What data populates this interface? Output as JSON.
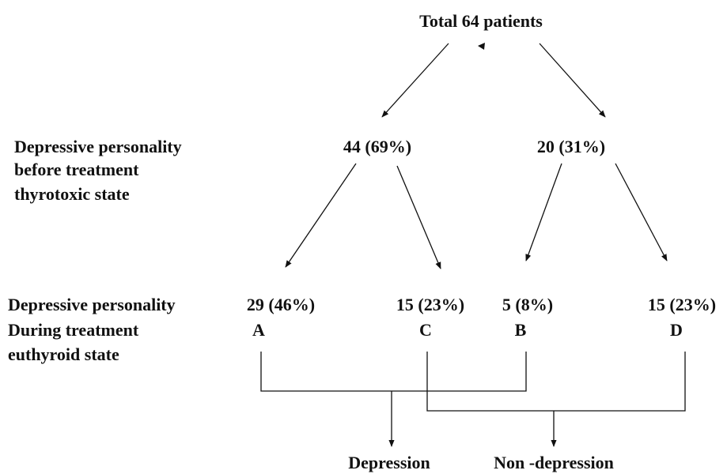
{
  "title": "Total 64 patients",
  "row_labels": [
    [
      "Depressive personality",
      "before treatment",
      "thyrotoxic state"
    ],
    [
      "Depressive personality",
      "During treatment",
      "euthyroid state"
    ]
  ],
  "level1": [
    "44 (69%)",
    "20 (31%)"
  ],
  "groups": [
    {
      "count": "29 (46%)",
      "letter": "A"
    },
    {
      "count": "15 (23%)",
      "letter": "C"
    },
    {
      "count": "5 (8%)",
      "letter": "B"
    },
    {
      "count": "15 (23%)",
      "letter": "D"
    }
  ],
  "outcomes": [
    "Depression",
    "Non -depression"
  ]
}
